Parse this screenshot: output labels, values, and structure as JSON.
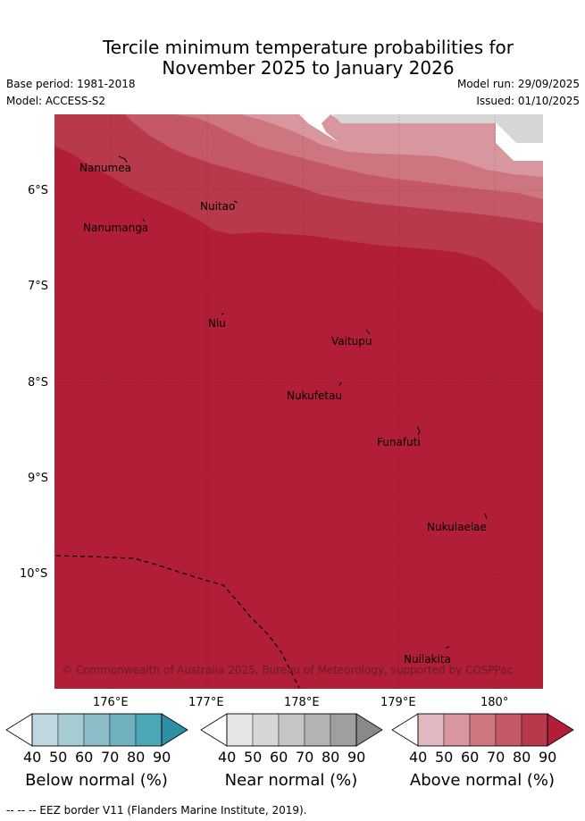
{
  "title": {
    "line1": "Tercile minimum temperature probabilities for",
    "line2": "November 2025 to January 2026"
  },
  "meta": {
    "base_period": "Base period: 1981-2018",
    "model": "Model: ACCESS-S2",
    "model_run": "Model run: 29/09/2025",
    "issued": "Issued: 01/10/2025"
  },
  "map": {
    "lat_labels": [
      "6°S",
      "7°S",
      "8°S",
      "9°S",
      "10°S"
    ],
    "lon_labels": [
      "176°E",
      "177°E",
      "178°E",
      "179°E",
      "180°"
    ],
    "places": [
      {
        "name": "Nanumea"
      },
      {
        "name": "Nuitao"
      },
      {
        "name": "Nanumanga"
      },
      {
        "name": "Niu"
      },
      {
        "name": "Vaitupu"
      },
      {
        "name": "Nukufetau"
      },
      {
        "name": "Funafuti"
      },
      {
        "name": "Nukulaelae"
      },
      {
        "name": "Nuilakita"
      }
    ],
    "copyright": "© Commonwealth of Australia 2025, Bureau of Meteorology, supported by COSPPac"
  },
  "colorbars": [
    {
      "title": "Below normal (%)",
      "ticks": [
        "40",
        "50",
        "60",
        "70",
        "80",
        "90"
      ],
      "colors": [
        "#ffffff",
        "#c0d8df",
        "#a6cbd1",
        "#8cbcc7",
        "#6fb1bf",
        "#4ba6b6",
        "#2e8ea3"
      ]
    },
    {
      "title": "Near normal (%)",
      "ticks": [
        "40",
        "50",
        "60",
        "70",
        "80",
        "90"
      ],
      "colors": [
        "#ffffff",
        "#e5e5e5",
        "#d6d6d6",
        "#c6c6c6",
        "#b3b3b3",
        "#9f9f9f",
        "#898989"
      ]
    },
    {
      "title": "Above normal (%)",
      "ticks": [
        "40",
        "50",
        "60",
        "70",
        "80",
        "90"
      ],
      "colors": [
        "#ffffff",
        "#e1b8bf",
        "#d8969f",
        "#cd7680",
        "#c45866",
        "#b8384c",
        "#b21e38"
      ]
    }
  ],
  "footer": "--  --  -- EEZ border V11 (Flanders Marine Institute, 2019)."
}
